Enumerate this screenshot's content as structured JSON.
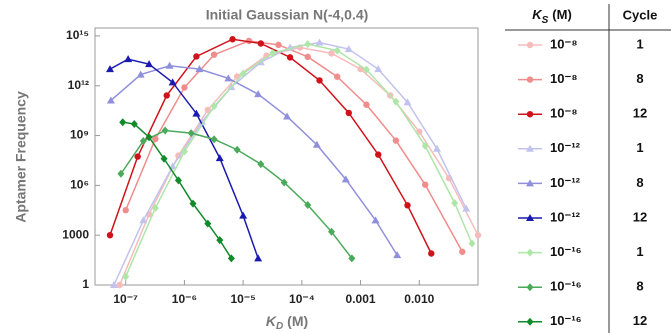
{
  "chart_data": {
    "type": "line",
    "title": "Initial Gaussian N(-4,0.4)",
    "xlabel": {
      "symbol": "K",
      "subscript": "D",
      "unit": "(M)"
    },
    "ylabel": "Aptamer Frequency",
    "xscale": "log",
    "yscale": "log",
    "xlim": [
      3e-08,
      0.1
    ],
    "ylim": [
      1,
      3000000000000000.0
    ],
    "xticks": [
      {
        "value": 1e-07,
        "label": "10⁻⁷"
      },
      {
        "value": 1e-06,
        "label": "10⁻⁶"
      },
      {
        "value": 1e-05,
        "label": "10⁻⁵"
      },
      {
        "value": 0.0001,
        "label": "10⁻⁴"
      },
      0.001,
      {
        "value": 0.01,
        "label": "0.010"
      }
    ],
    "yticks": [
      1,
      1000,
      {
        "value": 1000000.0,
        "label": "10⁶"
      },
      {
        "value": 1000000000.0,
        "label": "10⁹"
      },
      {
        "value": 1000000000000.0,
        "label": "10¹²"
      },
      {
        "value": 1000000000000000.0,
        "label": "10¹⁵"
      }
    ],
    "legend_header": {
      "ks": {
        "symbol": "K",
        "subscript": "S",
        "unit": "(M)"
      },
      "cycle": "Cycle"
    },
    "series": [
      {
        "ks": "10⁻⁸",
        "cycle": 1,
        "color": "#f6bcbc",
        "marker": "circle",
        "x": [
          7.9e-08,
          2.5e-07,
          7.9e-07,
          2.5e-06,
          7.9e-06,
          2.5e-05,
          9.3e-05,
          0.00032,
          0.001,
          0.0032,
          0.01,
          0.032,
          0.1
        ],
        "values": [
          1,
          18000.0,
          62000000.0,
          35000000000.0,
          3600000000000.0,
          65000000000000.0,
          200000000000000.0,
          89000000000000.0,
          10000000000000.0,
          260000000000.0,
          1700000000.0,
          2700000.0,
          1000
        ]
      },
      {
        "ks": "10⁻⁸",
        "cycle": 8,
        "color": "#f08c8c",
        "marker": "circle",
        "x": [
          1e-07,
          3.2e-07,
          1e-06,
          3.2e-06,
          1.26e-05,
          4e-05,
          0.000126,
          0.0004,
          0.00126,
          0.004,
          0.0126,
          0.054
        ],
        "values": [
          32000.0,
          620000000.0,
          790000000000.0,
          74000000000000.0,
          500000000000000.0,
          290000000000000.0,
          55000000000000.0,
          3500000000000.0,
          72000000000.0,
          500000000.0,
          1100000.0,
          100
        ]
      },
      {
        "ks": "10⁻⁸",
        "cycle": 12,
        "color": "#d0121b",
        "marker": "circle",
        "x": [
          5.4e-08,
          1.6e-07,
          5e-07,
          1.6e-06,
          6.6e-06,
          2e-05,
          6.3e-05,
          0.0002,
          0.00063,
          0.002,
          0.0063,
          0.016
        ],
        "values": [
          1000,
          54000000.0,
          260000000000.0,
          58000000000000.0,
          630000000000000.0,
          350000000000000.0,
          51000000000000.0,
          2100000000000.0,
          23000000000.0,
          71000000.0,
          63000.0,
          79
        ]
      },
      {
        "ks": "10⁻¹²",
        "cycle": 1,
        "color": "#c2c2ee",
        "marker": "triangle",
        "x": [
          6.3e-08,
          2e-07,
          6.3e-07,
          2e-06,
          6.3e-06,
          2e-05,
          6.3e-05,
          0.0002,
          0.00063,
          0.002,
          0.0063,
          0.02,
          0.063
        ],
        "values": [
          1,
          7900.0,
          14000000.0,
          6900000000.0,
          830000000000.0,
          26000000000000.0,
          200000000000000.0,
          400000000000000.0,
          160000000000000.0,
          10000000000000.0,
          100000000000.0,
          160000000.0,
          40000.0
        ]
      },
      {
        "ks": "10⁻¹²",
        "cycle": 8,
        "color": "#8f8fdc",
        "marker": "triangle",
        "x": [
          5.6e-08,
          1.8e-07,
          5.6e-07,
          1.8e-06,
          5.6e-06,
          1.8e-05,
          5.6e-05,
          0.00018,
          0.00056,
          0.0018,
          0.0042
        ],
        "values": [
          130000000000.0,
          4700000000000.0,
          16000000000000.0,
          10000000000000.0,
          2800000000000.0,
          310000000000.0,
          14000000000.0,
          280000000.0,
          2300000.0,
          7800.0,
          63
        ]
      },
      {
        "ks": "10⁻¹²",
        "cycle": 12,
        "color": "#1a1ab0",
        "marker": "triangle",
        "x": [
          5.4e-08,
          1.1e-07,
          2.5e-07,
          6.3e-07,
          1.6e-06,
          4e-06,
          1e-05,
          1.8e-05
        ],
        "values": [
          10000000000000.0,
          40000000000000.0,
          20000000000000.0,
          1600000000000.0,
          21000000000.0,
          44000000.0,
          15000.0,
          40
        ]
      },
      {
        "ks": "10⁻¹⁶",
        "cycle": 1,
        "color": "#aee6a8",
        "marker": "diamond",
        "x": [
          1e-07,
          3.2e-07,
          1e-06,
          3.2e-06,
          1e-05,
          3.2e-05,
          0.000126,
          0.0004,
          0.00126,
          0.004,
          0.0126,
          0.04,
          0.079
        ],
        "values": [
          3.2,
          43000.0,
          110000000.0,
          58000000000.0,
          5400000000000.0,
          93000000000000.0,
          320000000000000.0,
          130000000000000.0,
          9300000000000.0,
          110000000000.0,
          240000000.0,
          87000.0,
          316
        ]
      },
      {
        "ks": "10⁻¹⁶",
        "cycle": 8,
        "color": "#4aaa5a",
        "marker": "diamond",
        "x": [
          8.3e-08,
          2e-07,
          4.7e-07,
          1.3e-06,
          3.2e-06,
          7.9e-06,
          2e-05,
          5e-05,
          0.000126,
          0.00032,
          0.00071
        ],
        "values": [
          5000000.0,
          470000000.0,
          2000000000.0,
          1400000000.0,
          600000000.0,
          140000000.0,
          19000000.0,
          1500000.0,
          66000.0,
          1600,
          40
        ]
      },
      {
        "ks": "10⁻¹⁶",
        "cycle": 12,
        "color": "#118a2a",
        "marker": "diamond",
        "x": [
          8.9e-08,
          1.4e-07,
          2.5e-07,
          4.5e-07,
          7.9e-07,
          1.4e-06,
          2.5e-06,
          4e-06,
          6.3e-06
        ],
        "values": [
          6300000000.0,
          5000000000.0,
          790000000.0,
          40000000.0,
          2000000.0,
          79000.0,
          5000,
          500,
          40
        ]
      }
    ]
  }
}
